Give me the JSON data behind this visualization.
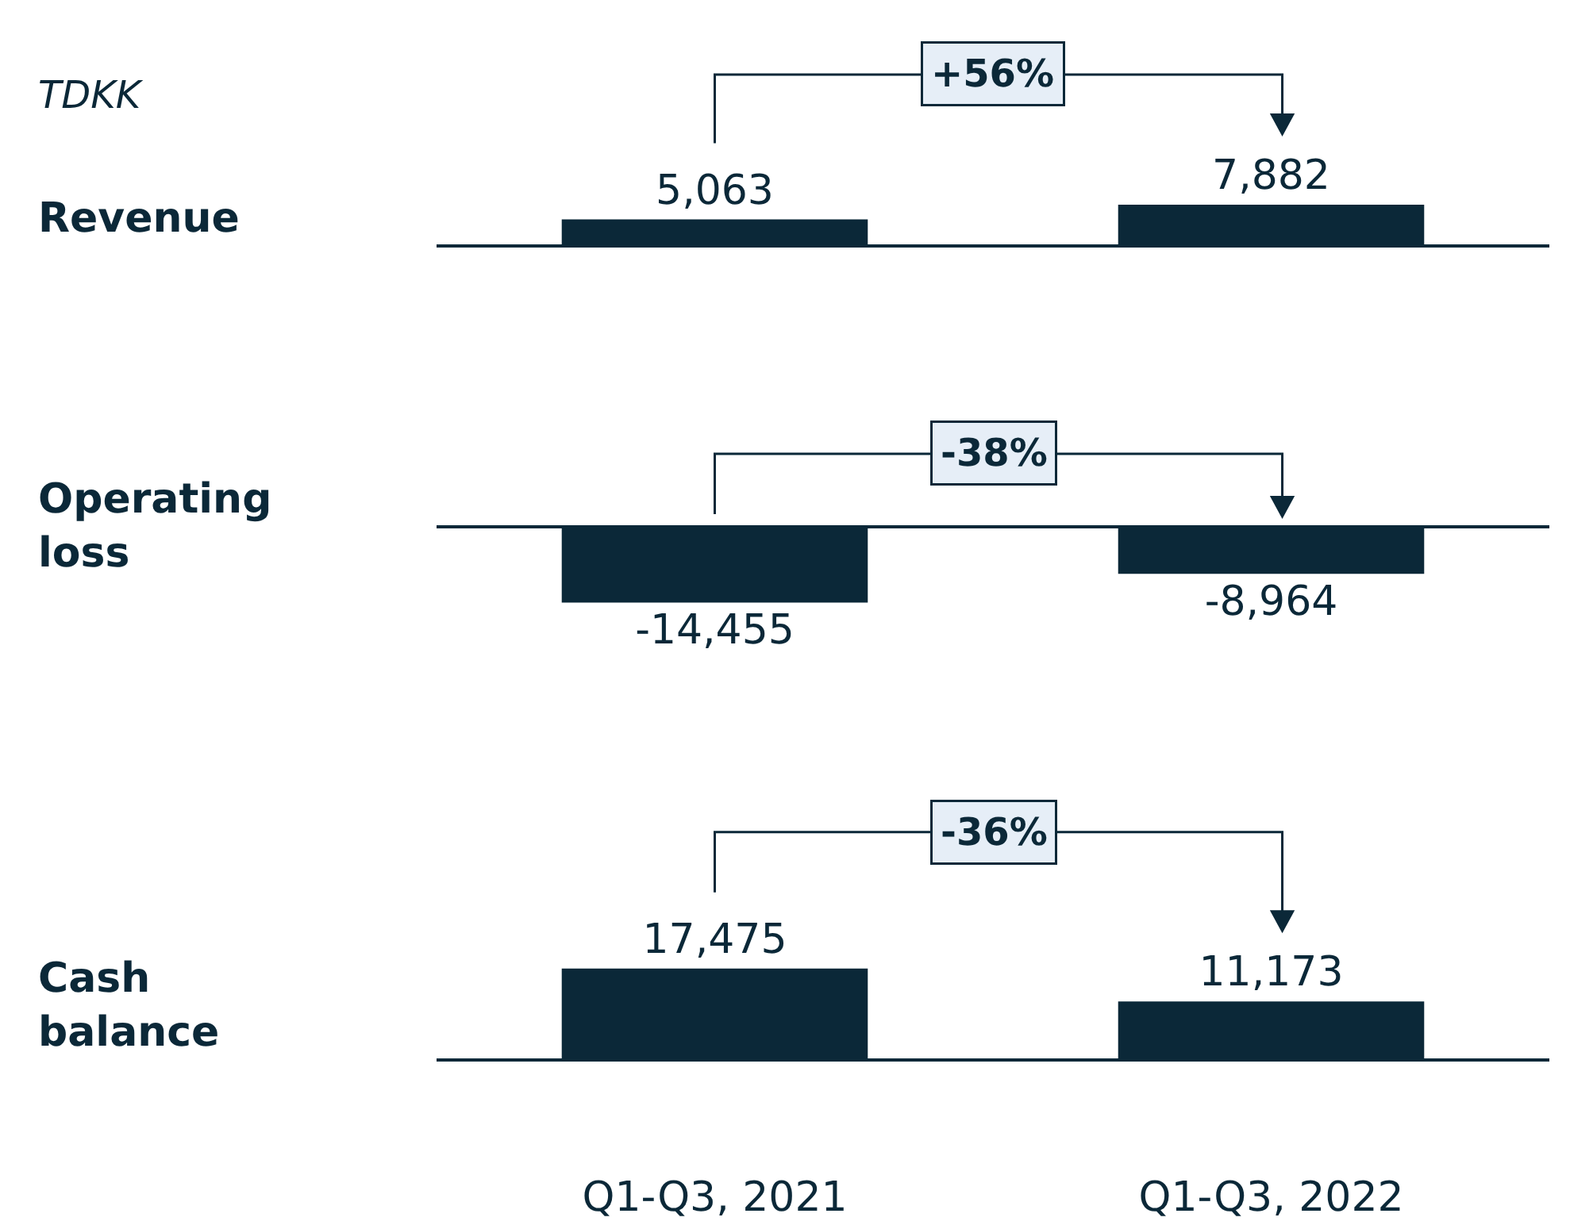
{
  "chart_data": [
    {
      "type": "bar",
      "title": "Revenue",
      "ylabel": "TDKK",
      "categories": [
        null,
        null
      ],
      "values": [
        5063,
        7882
      ],
      "value_labels": [
        "5,063",
        "7,882"
      ],
      "color": "#0b2838",
      "annotations": [
        "+56%"
      ],
      "tick_labels": false
    },
    {
      "type": "bar",
      "title": "Operating loss",
      "categories": [
        null,
        null
      ],
      "values": [
        -14455,
        -8964
      ],
      "value_labels": [
        "-14,455",
        "-8,964"
      ],
      "color": "#0b2838",
      "annotations": [
        "-38%"
      ],
      "tick_labels": false
    },
    {
      "type": "bar",
      "title": "Cash balance",
      "categories": [
        "Q1-Q3, 2021",
        "Q1-Q3, 2022"
      ],
      "values": [
        17475,
        11173
      ],
      "value_labels": [
        "17,475",
        "11,173"
      ],
      "color": "#0b2838",
      "annotations": [
        "-36%"
      ],
      "tick_labels": "x"
    }
  ]
}
